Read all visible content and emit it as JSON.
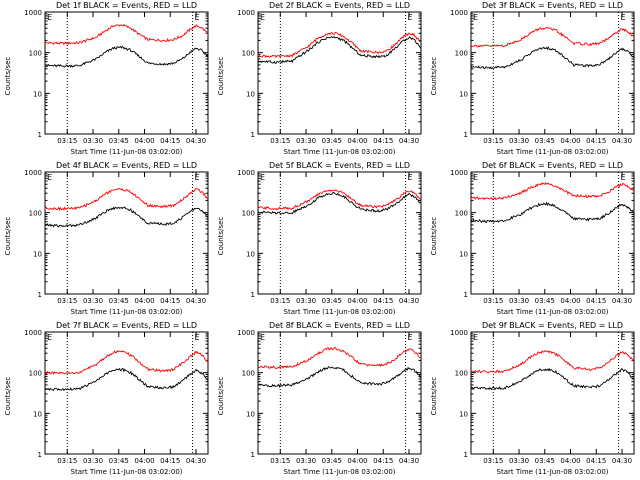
{
  "styles": {
    "events_color": "#000000",
    "lld_color": "#ff0000",
    "marker_line": "dotted"
  },
  "chart_data": [
    {
      "type": "line",
      "title": "Det 1f BLACK = Events, RED = LLD",
      "xlabel": "Start Time (11-Jun-08 03:02:00)",
      "ylabel": "Counts/sec",
      "yscale": "log",
      "ylim": [
        1,
        1000
      ],
      "y_ticks": [
        "1",
        "10",
        "100",
        "1000"
      ],
      "x_ticks": [
        "03:15",
        "03:30",
        "03:45",
        "04:00",
        "04:15",
        "04:30"
      ],
      "x_tick_minutes": [
        13,
        28,
        43,
        58,
        73,
        88
      ],
      "xlim_minutes": [
        0,
        95
      ],
      "marker_label": "E",
      "markers_minutes": [
        13,
        86
      ],
      "x_minutes": [
        0,
        10,
        20,
        30,
        35,
        40,
        45,
        50,
        55,
        60,
        70,
        75,
        80,
        85,
        88,
        91,
        95
      ],
      "series": [
        {
          "name": "LLD",
          "color": "#ff0000",
          "values": [
            175,
            170,
            175,
            240,
            340,
            460,
            480,
            400,
            280,
            210,
            200,
            210,
            260,
            380,
            460,
            420,
            300
          ]
        },
        {
          "name": "Events",
          "color": "#000000",
          "values": [
            48,
            47,
            48,
            70,
            100,
            130,
            135,
            115,
            80,
            55,
            52,
            55,
            70,
            105,
            128,
            115,
            80
          ]
        }
      ]
    },
    {
      "type": "line",
      "title": "Det 2f BLACK = Events, RED = LLD",
      "xlabel": "Start Time (11-Jun-08 03:02:00)",
      "ylabel": "Counts/sec",
      "yscale": "log",
      "ylim": [
        1,
        1000
      ],
      "y_ticks": [
        "1",
        "10",
        "100",
        "1000"
      ],
      "x_ticks": [
        "03:15",
        "03:30",
        "03:45",
        "04:00",
        "04:15",
        "04:30"
      ],
      "x_tick_minutes": [
        13,
        28,
        43,
        58,
        73,
        88
      ],
      "xlim_minutes": [
        0,
        95
      ],
      "marker_label": "E",
      "markers_minutes": [
        13,
        86
      ],
      "x_minutes": [
        0,
        10,
        20,
        30,
        35,
        40,
        45,
        50,
        55,
        60,
        70,
        75,
        80,
        85,
        88,
        91,
        95
      ],
      "series": [
        {
          "name": "LLD",
          "color": "#ff0000",
          "values": [
            85,
            80,
            85,
            150,
            230,
            290,
            300,
            250,
            170,
            110,
            100,
            110,
            160,
            250,
            300,
            270,
            180
          ]
        },
        {
          "name": "Events",
          "color": "#000000",
          "values": [
            62,
            58,
            62,
            120,
            180,
            230,
            240,
            200,
            130,
            85,
            80,
            85,
            130,
            200,
            240,
            210,
            130
          ]
        }
      ]
    },
    {
      "type": "line",
      "title": "Det 3f BLACK = Events, RED = LLD",
      "xlabel": "Start Time (11-Jun-08 03:02:00)",
      "ylabel": "Counts/sec",
      "yscale": "log",
      "ylim": [
        1,
        1000
      ],
      "y_ticks": [
        "1",
        "10",
        "100",
        "1000"
      ],
      "x_ticks": [
        "03:15",
        "03:30",
        "03:45",
        "04:00",
        "04:15",
        "04:30"
      ],
      "x_tick_minutes": [
        13,
        28,
        43,
        58,
        73,
        88
      ],
      "xlim_minutes": [
        0,
        95
      ],
      "marker_label": "E",
      "markers_minutes": [
        13,
        86
      ],
      "x_minutes": [
        0,
        10,
        20,
        30,
        35,
        40,
        45,
        50,
        55,
        60,
        70,
        75,
        80,
        85,
        88,
        91,
        95
      ],
      "series": [
        {
          "name": "LLD",
          "color": "#ff0000",
          "values": [
            150,
            145,
            150,
            220,
            310,
            390,
            400,
            340,
            240,
            170,
            160,
            170,
            220,
            320,
            380,
            340,
            240
          ]
        },
        {
          "name": "Events",
          "color": "#000000",
          "values": [
            45,
            42,
            45,
            70,
            100,
            125,
            130,
            110,
            75,
            50,
            48,
            52,
            70,
            105,
            125,
            110,
            75
          ]
        }
      ]
    },
    {
      "type": "line",
      "title": "Det 4f BLACK = Events, RED = LLD",
      "xlabel": "Start Time (11-Jun-08 03:02:00)",
      "ylabel": "Counts/sec",
      "yscale": "log",
      "ylim": [
        1,
        1000
      ],
      "y_ticks": [
        "1",
        "10",
        "100",
        "1000"
      ],
      "x_ticks": [
        "03:15",
        "03:30",
        "03:45",
        "04:00",
        "04:15",
        "04:30"
      ],
      "x_tick_minutes": [
        13,
        28,
        43,
        58,
        73,
        88
      ],
      "xlim_minutes": [
        0,
        95
      ],
      "marker_label": "E",
      "markers_minutes": [
        13,
        86
      ],
      "x_minutes": [
        0,
        10,
        20,
        30,
        35,
        40,
        45,
        50,
        55,
        60,
        70,
        75,
        80,
        85,
        88,
        91,
        95
      ],
      "series": [
        {
          "name": "LLD",
          "color": "#ff0000",
          "values": [
            130,
            125,
            130,
            200,
            290,
            370,
            380,
            320,
            220,
            150,
            140,
            150,
            210,
            310,
            380,
            330,
            220
          ]
        },
        {
          "name": "Events",
          "color": "#000000",
          "values": [
            50,
            47,
            50,
            75,
            105,
            130,
            135,
            115,
            80,
            55,
            52,
            56,
            75,
            110,
            130,
            115,
            78
          ]
        }
      ]
    },
    {
      "type": "line",
      "title": "Det 5f BLACK = Events, RED = LLD",
      "xlabel": "Start Time (11-Jun-08 03:02:00)",
      "ylabel": "Counts/sec",
      "yscale": "log",
      "ylim": [
        1,
        1000
      ],
      "y_ticks": [
        "1",
        "10",
        "100",
        "1000"
      ],
      "x_ticks": [
        "03:15",
        "03:30",
        "03:45",
        "04:00",
        "04:15",
        "04:30"
      ],
      "x_tick_minutes": [
        13,
        28,
        43,
        58,
        73,
        88
      ],
      "xlim_minutes": [
        0,
        95
      ],
      "marker_label": "E",
      "markers_minutes": [
        13,
        86
      ],
      "x_minutes": [
        0,
        10,
        20,
        30,
        35,
        40,
        45,
        50,
        55,
        60,
        70,
        75,
        80,
        85,
        88,
        91,
        95
      ],
      "series": [
        {
          "name": "LLD",
          "color": "#ff0000",
          "values": [
            135,
            125,
            130,
            200,
            280,
            350,
            360,
            300,
            210,
            150,
            140,
            150,
            200,
            290,
            340,
            310,
            210
          ]
        },
        {
          "name": "Events",
          "color": "#000000",
          "values": [
            105,
            98,
            100,
            160,
            230,
            290,
            300,
            250,
            170,
            120,
            110,
            120,
            160,
            240,
            280,
            250,
            170
          ]
        }
      ]
    },
    {
      "type": "line",
      "title": "Det 6f BLACK = Events, RED = LLD",
      "xlabel": "Start Time (11-Jun-08 03:02:00)",
      "ylabel": "Counts/sec",
      "yscale": "log",
      "ylim": [
        1,
        1000
      ],
      "y_ticks": [
        "1",
        "10",
        "100",
        "1000"
      ],
      "x_ticks": [
        "03:15",
        "03:30",
        "03:45",
        "04:00",
        "04:15",
        "04:30"
      ],
      "x_tick_minutes": [
        13,
        28,
        43,
        58,
        73,
        88
      ],
      "xlim_minutes": [
        0,
        95
      ],
      "marker_label": "E",
      "markers_minutes": [
        13,
        86
      ],
      "x_minutes": [
        0,
        10,
        20,
        30,
        35,
        40,
        45,
        50,
        55,
        60,
        70,
        75,
        80,
        85,
        88,
        91,
        95
      ],
      "series": [
        {
          "name": "LLD",
          "color": "#ff0000",
          "values": [
            230,
            220,
            230,
            320,
            420,
            500,
            510,
            440,
            330,
            260,
            250,
            260,
            320,
            440,
            500,
            450,
            330
          ]
        },
        {
          "name": "Events",
          "color": "#000000",
          "values": [
            65,
            60,
            65,
            95,
            130,
            160,
            165,
            140,
            100,
            72,
            68,
            72,
            95,
            135,
            160,
            140,
            100
          ]
        }
      ]
    },
    {
      "type": "line",
      "title": "Det 7f BLACK = Events, RED = LLD",
      "xlabel": "Start Time (11-Jun-08 03:02:00)",
      "ylabel": "Counts/sec",
      "yscale": "log",
      "ylim": [
        1,
        1000
      ],
      "y_ticks": [
        "1",
        "10",
        "100",
        "1000"
      ],
      "x_ticks": [
        "03:15",
        "03:30",
        "03:45",
        "04:00",
        "04:15",
        "04:30"
      ],
      "x_tick_minutes": [
        13,
        28,
        43,
        58,
        73,
        88
      ],
      "xlim_minutes": [
        0,
        95
      ],
      "marker_label": "E",
      "markers_minutes": [
        13,
        86
      ],
      "x_minutes": [
        0,
        10,
        20,
        30,
        35,
        40,
        45,
        50,
        55,
        60,
        70,
        75,
        80,
        85,
        88,
        91,
        95
      ],
      "series": [
        {
          "name": "LLD",
          "color": "#ff0000",
          "values": [
            100,
            95,
            100,
            160,
            240,
            320,
            330,
            270,
            180,
            120,
            110,
            120,
            170,
            260,
            320,
            280,
            180
          ]
        },
        {
          "name": "Events",
          "color": "#000000",
          "values": [
            40,
            38,
            40,
            62,
            90,
            115,
            120,
            100,
            68,
            45,
            42,
            45,
            62,
            95,
            115,
            100,
            65
          ]
        }
      ]
    },
    {
      "type": "line",
      "title": "Det 8f BLACK = Events, RED = LLD",
      "xlabel": "Start Time (11-Jun-08 03:02:00)",
      "ylabel": "Counts/sec",
      "yscale": "log",
      "ylim": [
        1,
        1000
      ],
      "y_ticks": [
        "1",
        "10",
        "100",
        "1000"
      ],
      "x_ticks": [
        "03:15",
        "03:30",
        "03:45",
        "04:00",
        "04:15",
        "04:30"
      ],
      "x_tick_minutes": [
        13,
        28,
        43,
        58,
        73,
        88
      ],
      "xlim_minutes": [
        0,
        95
      ],
      "marker_label": "E",
      "markers_minutes": [
        13,
        86
      ],
      "x_minutes": [
        0,
        10,
        20,
        30,
        35,
        40,
        45,
        50,
        55,
        60,
        70,
        75,
        80,
        85,
        88,
        91,
        95
      ],
      "series": [
        {
          "name": "LLD",
          "color": "#ff0000",
          "values": [
            140,
            135,
            140,
            210,
            300,
            380,
            390,
            330,
            230,
            160,
            150,
            160,
            220,
            320,
            380,
            340,
            230
          ]
        },
        {
          "name": "Events",
          "color": "#000000",
          "values": [
            50,
            47,
            50,
            75,
            105,
            130,
            135,
            115,
            80,
            55,
            52,
            56,
            75,
            110,
            130,
            115,
            78
          ]
        }
      ]
    },
    {
      "type": "line",
      "title": "Det 9f BLACK = Events, RED = LLD",
      "xlabel": "Start Time (11-Jun-08 03:02:00)",
      "ylabel": "Counts/sec",
      "yscale": "log",
      "ylim": [
        1,
        1000
      ],
      "y_ticks": [
        "1",
        "10",
        "100",
        "1000"
      ],
      "x_ticks": [
        "03:15",
        "03:30",
        "03:45",
        "04:00",
        "04:15",
        "04:30"
      ],
      "x_tick_minutes": [
        13,
        28,
        43,
        58,
        73,
        88
      ],
      "xlim_minutes": [
        0,
        95
      ],
      "marker_label": "E",
      "markers_minutes": [
        13,
        86
      ],
      "x_minutes": [
        0,
        10,
        20,
        30,
        35,
        40,
        45,
        50,
        55,
        60,
        70,
        75,
        80,
        85,
        88,
        91,
        95
      ],
      "series": [
        {
          "name": "LLD",
          "color": "#ff0000",
          "values": [
            110,
            105,
            110,
            170,
            250,
            320,
            330,
            280,
            190,
            130,
            120,
            130,
            180,
            270,
            320,
            290,
            190
          ]
        },
        {
          "name": "Events",
          "color": "#000000",
          "values": [
            42,
            40,
            42,
            65,
            92,
            118,
            122,
            102,
            70,
            47,
            44,
            47,
            65,
            98,
            118,
            104,
            68
          ]
        }
      ]
    }
  ]
}
